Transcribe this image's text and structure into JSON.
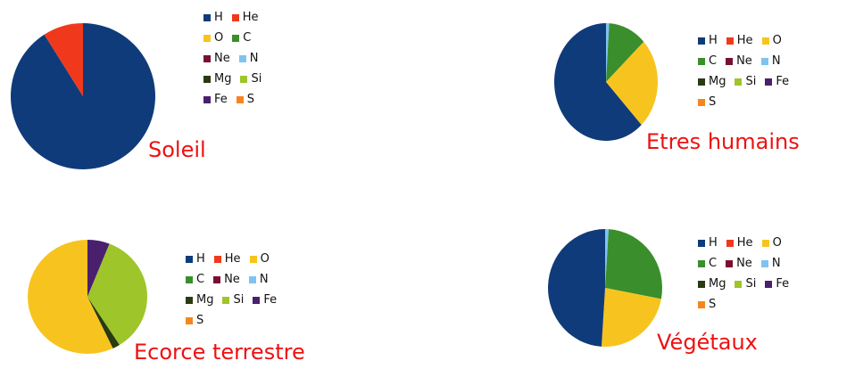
{
  "elements": [
    {
      "symbol": "H",
      "color": "#0f3b7a"
    },
    {
      "symbol": "He",
      "color": "#f0391c"
    },
    {
      "symbol": "O",
      "color": "#f7c41f"
    },
    {
      "symbol": "C",
      "color": "#3a8e2b"
    },
    {
      "symbol": "Ne",
      "color": "#7a1030"
    },
    {
      "symbol": "N",
      "color": "#7fc3f0"
    },
    {
      "symbol": "Mg",
      "color": "#283b12"
    },
    {
      "symbol": "Si",
      "color": "#9ec52a"
    },
    {
      "symbol": "Fe",
      "color": "#4a1f6e"
    },
    {
      "symbol": "S",
      "color": "#f5861f"
    }
  ],
  "chart_data": [
    {
      "type": "pie",
      "title": "Soleil",
      "legend": [
        "H",
        "He",
        "O",
        "C",
        "Ne",
        "N",
        "Mg",
        "Si",
        "Fe",
        "S"
      ],
      "slices": [
        {
          "label": "H",
          "value": 91
        },
        {
          "label": "He",
          "value": 9
        }
      ]
    },
    {
      "type": "pie",
      "title": "Etres humains",
      "legend": [
        "H",
        "He",
        "O",
        "C",
        "Ne",
        "N",
        "Mg",
        "Si",
        "Fe",
        "S"
      ],
      "slices": [
        {
          "label": "N",
          "value": 1
        },
        {
          "label": "C",
          "value": 12
        },
        {
          "label": "O",
          "value": 25
        },
        {
          "label": "H",
          "value": 62
        }
      ]
    },
    {
      "type": "pie",
      "title": "Ecorce terrestre",
      "legend": [
        "H",
        "He",
        "O",
        "C",
        "Ne",
        "N",
        "Mg",
        "Si",
        "Fe",
        "S"
      ],
      "slices": [
        {
          "label": "Fe",
          "value": 6
        },
        {
          "label": "Si",
          "value": 35
        },
        {
          "label": "Mg",
          "value": 2
        },
        {
          "label": "O",
          "value": 57
        }
      ]
    },
    {
      "type": "pie",
      "title": "Végétaux",
      "legend": [
        "H",
        "He",
        "O",
        "C",
        "Ne",
        "N",
        "Mg",
        "Si",
        "Fe",
        "S"
      ],
      "slices": [
        {
          "label": "N",
          "value": 1
        },
        {
          "label": "C",
          "value": 27
        },
        {
          "label": "O",
          "value": 23
        },
        {
          "label": "H",
          "value": 49
        }
      ]
    }
  ]
}
